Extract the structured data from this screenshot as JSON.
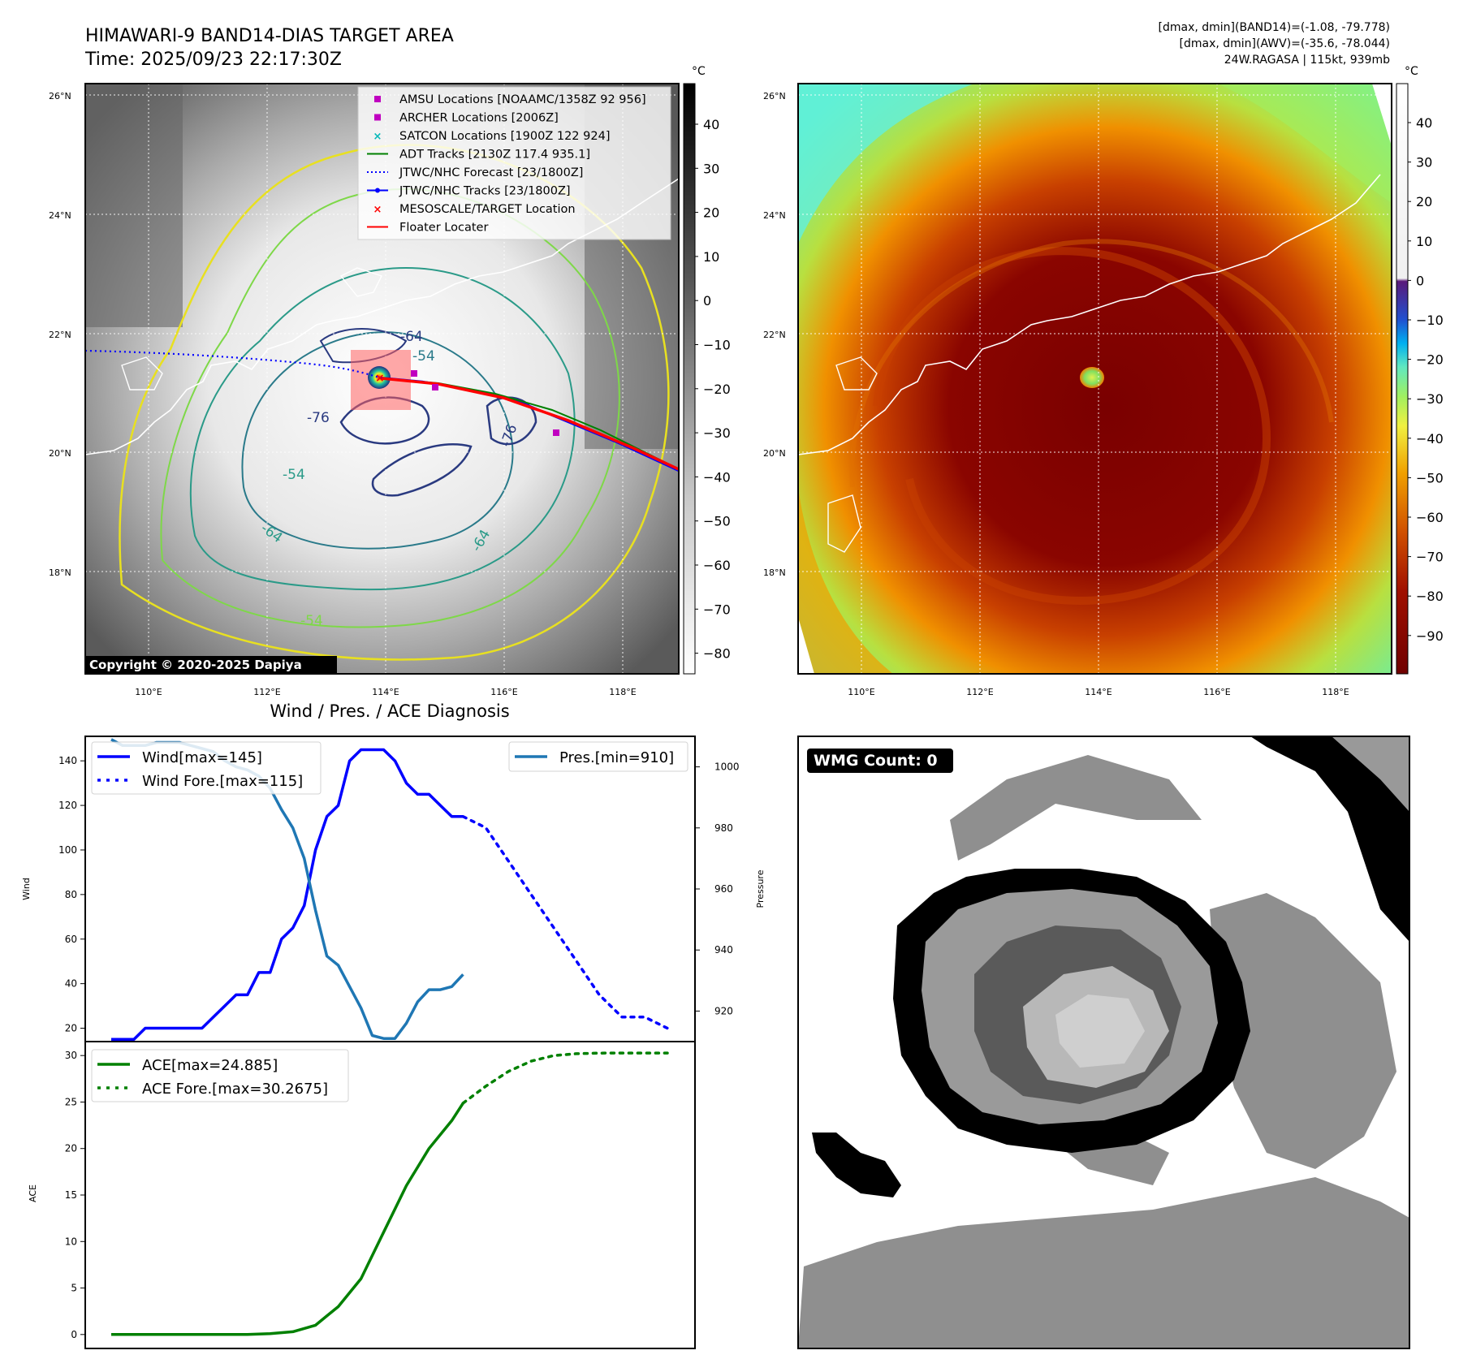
{
  "header": {
    "title_line1": "HIMAWARI-9 BAND14-DIAS TARGET AREA",
    "title_line2": "Time: 2025/09/23 22:17:30Z",
    "stats_line1": "[dmax, dmin](BAND14)=(-1.08, -79.778)",
    "stats_line2": "[dmax, dmin](AWV)=(-35.6, -78.044)",
    "stats_line3": "24W.RAGASA | 115kt, 939mb"
  },
  "maps": {
    "lat_ticks": [
      "26°N",
      "24°N",
      "22°N",
      "20°N",
      "18°N"
    ],
    "lon_ticks": [
      "110°E",
      "112°E",
      "114°E",
      "116°E",
      "118°E"
    ],
    "copyright": "Copyright © 2020-2025 Dapiya",
    "contour_labels": [
      "-64",
      "-54",
      "-76",
      "-76",
      "-54",
      "-64",
      "-54",
      "-64"
    ],
    "legend": [
      {
        "label": "AMSU Locations [NOAAMC/1358Z 92 956]",
        "marker": "square",
        "color": "#c000c0"
      },
      {
        "label": "ARCHER Locations [2006Z]",
        "marker": "square",
        "color": "#c000c0"
      },
      {
        "label": "SATCON Locations [1900Z 122 924]",
        "marker": "x",
        "color": "#00b8b8"
      },
      {
        "label": "ADT Tracks [2130Z 117.4 935.1]",
        "marker": "line",
        "color": "#008000"
      },
      {
        "label": "JTWC/NHC Forecast [23/1800Z]",
        "marker": "dotted",
        "color": "#0000ff"
      },
      {
        "label": "JTWC/NHC Tracks [23/1800Z]",
        "marker": "line-dot",
        "color": "#0000ff"
      },
      {
        "label": "MESOSCALE/TARGET Location",
        "marker": "x",
        "color": "#ff0000"
      },
      {
        "label": "Floater Locater",
        "marker": "line",
        "color": "#ff0000"
      }
    ],
    "gray_colorbar": {
      "unit": "°C",
      "ticks": [
        "40",
        "30",
        "20",
        "10",
        "0",
        "−10",
        "−20",
        "−30",
        "−40",
        "−50",
        "−60",
        "−70",
        "−80"
      ]
    },
    "color_colorbar": {
      "unit": "°C",
      "ticks": [
        "40",
        "30",
        "20",
        "10",
        "0",
        "−10",
        "−20",
        "−30",
        "−40",
        "−50",
        "−60",
        "−70",
        "−80",
        "−90"
      ]
    }
  },
  "diagnosis": {
    "title": "Wind / Pres. / ACE Diagnosis",
    "wmg_label": "WMG Count: 0"
  },
  "chart_data": [
    {
      "type": "line",
      "title": "Wind / Pres. / ACE Diagnosis",
      "ylabel": "Wind",
      "y2label": "Pressure",
      "ylim": [
        14,
        151
      ],
      "y2lim": [
        910,
        1010
      ],
      "yticks": [
        "20",
        "40",
        "60",
        "80",
        "100",
        "120",
        "140"
      ],
      "y2ticks": [
        "920",
        "940",
        "960",
        "980",
        "1000"
      ],
      "series": [
        {
          "name": "Wind[max=145]",
          "axis": "left",
          "style": "solid",
          "color": "#0000ff",
          "x": [
            0,
            1,
            2,
            3,
            4,
            5,
            6,
            7,
            8,
            9,
            10,
            11,
            12,
            13,
            14,
            15,
            16,
            17,
            18,
            19,
            20,
            21,
            22,
            23,
            24,
            25,
            26,
            27,
            28,
            29,
            30,
            31
          ],
          "y": [
            15,
            15,
            15,
            20,
            20,
            20,
            20,
            20,
            20,
            25,
            30,
            35,
            35,
            45,
            45,
            60,
            65,
            75,
            100,
            115,
            120,
            140,
            145,
            145,
            145,
            140,
            130,
            125,
            125,
            120,
            115,
            115
          ]
        },
        {
          "name": "Wind Fore.[max=115]",
          "axis": "left",
          "style": "dotted",
          "color": "#0000ff",
          "x": [
            31,
            33,
            35,
            37,
            39,
            41,
            43,
            45,
            47,
            49
          ],
          "y": [
            115,
            110,
            95,
            80,
            65,
            50,
            35,
            25,
            25,
            20
          ]
        },
        {
          "name": "Pres.[min=910]",
          "axis": "right",
          "style": "solid",
          "color": "#1f77b4",
          "x": [
            0,
            1,
            2,
            3,
            4,
            5,
            6,
            7,
            8,
            9,
            10,
            11,
            12,
            13,
            14,
            15,
            16,
            17,
            18,
            19,
            20,
            21,
            22,
            23,
            24,
            25,
            26,
            27,
            28,
            29,
            30,
            31
          ],
          "y": [
            1009,
            1007,
            1007,
            1007,
            1008,
            1008,
            1008,
            1007,
            1006,
            1005,
            1002,
            1000,
            999,
            997,
            993,
            986,
            980,
            970,
            953,
            938,
            935,
            928,
            921,
            912,
            911,
            911,
            916,
            923,
            927,
            927,
            928,
            932
          ]
        }
      ],
      "legend_left": [
        "Wind[max=145]",
        "Wind Fore.[max=115]"
      ],
      "legend_right": [
        "Pres.[min=910]"
      ]
    },
    {
      "type": "line",
      "ylabel": "ACE",
      "ylim": [
        -1.5,
        31.5
      ],
      "yticks": [
        "0",
        "5",
        "10",
        "15",
        "20",
        "25",
        "30"
      ],
      "series": [
        {
          "name": "ACE[max=24.885]",
          "style": "solid",
          "color": "#008000",
          "x": [
            0,
            2,
            4,
            6,
            8,
            10,
            12,
            14,
            16,
            18,
            19,
            20,
            22,
            24,
            26,
            28,
            30,
            31
          ],
          "y": [
            0,
            0,
            0,
            0,
            0,
            0,
            0,
            0.1,
            0.3,
            1,
            2,
            3,
            6,
            11,
            16,
            20,
            23,
            24.885
          ]
        },
        {
          "name": "ACE Fore.[max=30.2675]",
          "style": "dotted",
          "color": "#008000",
          "x": [
            31,
            33,
            35,
            37,
            39,
            41,
            43,
            45,
            47,
            49
          ],
          "y": [
            24.885,
            26.7,
            28.3,
            29.4,
            30.0,
            30.2,
            30.26,
            30.2675,
            30.2675,
            30.2675
          ]
        }
      ]
    }
  ]
}
